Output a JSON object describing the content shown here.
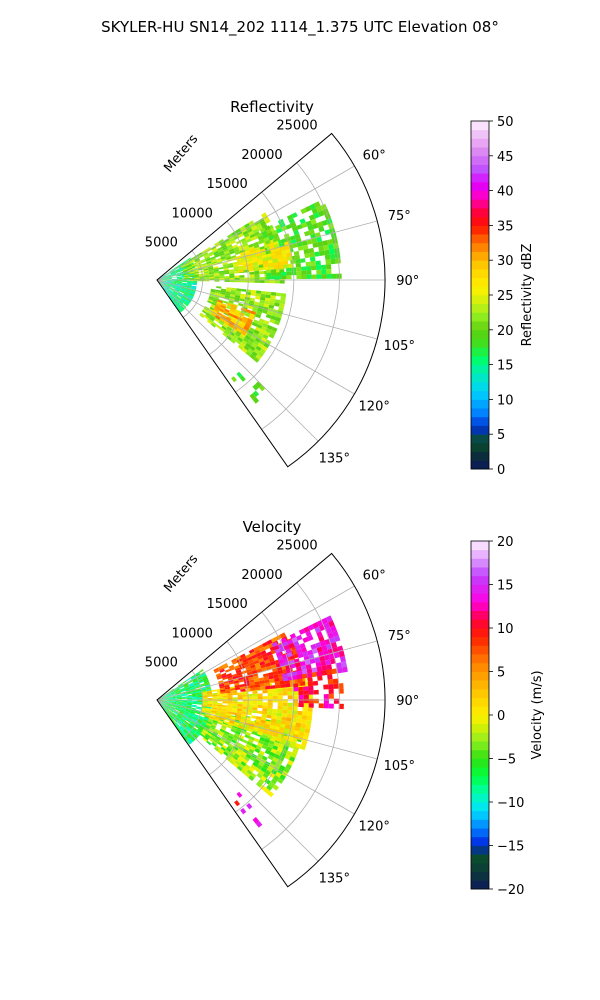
{
  "figure": {
    "title": "SKYLER-HU  SN14_202  1114_1.375 UTC Elevation 08°"
  },
  "chart_data": [
    {
      "type": "heatmap",
      "projection": "polar-sector",
      "title": "Reflectivity",
      "radial_label": "Meters",
      "radial_ticks": [
        "5000",
        "10000",
        "15000",
        "20000",
        "25000"
      ],
      "radial_tick_values": [
        5000,
        10000,
        15000,
        20000,
        25000
      ],
      "rlim": [
        0,
        25000
      ],
      "azimuth_range_deg": [
        50,
        145
      ],
      "angle_ticks": [
        "60°",
        "75°",
        "90°",
        "105°",
        "120°",
        "135°"
      ],
      "angle_tick_values": [
        60,
        75,
        90,
        105,
        120,
        135
      ],
      "grid": true,
      "colorbar": {
        "label": "Reflectivity dBZ",
        "range": [
          0,
          50
        ],
        "ticks": [
          "0",
          "5",
          "10",
          "15",
          "20",
          "25",
          "30",
          "35",
          "40",
          "45",
          "50"
        ],
        "tick_values": [
          0,
          5,
          10,
          15,
          20,
          25,
          30,
          35,
          40,
          45,
          50
        ],
        "stops": [
          {
            "v": 0,
            "c": "#0a1a5a"
          },
          {
            "v": 2,
            "c": "#0c2e3a"
          },
          {
            "v": 4,
            "c": "#0a5028"
          },
          {
            "v": 6,
            "c": "#0030d0"
          },
          {
            "v": 8,
            "c": "#0080ff"
          },
          {
            "v": 11,
            "c": "#00d0ff"
          },
          {
            "v": 14,
            "c": "#00f0b0"
          },
          {
            "v": 16,
            "c": "#00ff60"
          },
          {
            "v": 18,
            "c": "#40e020"
          },
          {
            "v": 20,
            "c": "#60d010"
          },
          {
            "v": 22,
            "c": "#90ee20"
          },
          {
            "v": 24,
            "c": "#d0f010"
          },
          {
            "v": 26,
            "c": "#fff000"
          },
          {
            "v": 29,
            "c": "#ffd000"
          },
          {
            "v": 31,
            "c": "#ffa000"
          },
          {
            "v": 33,
            "c": "#ff6000"
          },
          {
            "v": 35,
            "c": "#ff1000"
          },
          {
            "v": 37,
            "c": "#ff0040"
          },
          {
            "v": 39,
            "c": "#ff00c0"
          },
          {
            "v": 41,
            "c": "#e000ff"
          },
          {
            "v": 43,
            "c": "#c050ff"
          },
          {
            "v": 46,
            "c": "#e090f0"
          },
          {
            "v": 50,
            "c": "#fff0ff"
          }
        ]
      },
      "regions": [
        {
          "az": [
            56,
            144
          ],
          "r": [
            0,
            4000
          ],
          "value": 15,
          "density": 0.9
        },
        {
          "az": [
            58,
            90
          ],
          "r": [
            3000,
            14000
          ],
          "value": 22,
          "density": 0.85
        },
        {
          "az": [
            64,
            88
          ],
          "r": [
            12000,
            20000
          ],
          "value": 19,
          "density": 0.75
        },
        {
          "az": [
            96,
            128
          ],
          "r": [
            6000,
            14000
          ],
          "value": 22,
          "density": 0.85
        },
        {
          "az": [
            108,
            122
          ],
          "r": [
            7000,
            11000
          ],
          "value": 30,
          "density": 0.85
        },
        {
          "az": [
            72,
            84
          ],
          "r": [
            9000,
            15000
          ],
          "value": 26,
          "density": 0.8
        },
        {
          "az": [
            135,
            142
          ],
          "r": [
            13500,
            17500
          ],
          "value": 19,
          "density": 0.15
        }
      ]
    },
    {
      "type": "heatmap",
      "projection": "polar-sector",
      "title": "Velocity",
      "radial_label": "Meters",
      "radial_ticks": [
        "5000",
        "10000",
        "15000",
        "20000",
        "25000"
      ],
      "radial_tick_values": [
        5000,
        10000,
        15000,
        20000,
        25000
      ],
      "rlim": [
        0,
        25000
      ],
      "azimuth_range_deg": [
        50,
        145
      ],
      "angle_ticks": [
        "60°",
        "75°",
        "90°",
        "105°",
        "120°",
        "135°"
      ],
      "angle_tick_values": [
        60,
        75,
        90,
        105,
        120,
        135
      ],
      "grid": true,
      "colorbar": {
        "label": "Velocity (m/s)",
        "range": [
          -20,
          20
        ],
        "ticks": [
          "−20",
          "−15",
          "−10",
          "−5",
          "0",
          "5",
          "10",
          "15",
          "20"
        ],
        "tick_values": [
          -20,
          -15,
          -10,
          -5,
          0,
          5,
          10,
          15,
          20
        ],
        "stops": [
          {
            "v": -20,
            "c": "#0a1a5a"
          },
          {
            "v": -18,
            "c": "#0c3a3a"
          },
          {
            "v": -16,
            "c": "#0a5028"
          },
          {
            "v": -15,
            "c": "#0020e0"
          },
          {
            "v": -13,
            "c": "#0080ff"
          },
          {
            "v": -11,
            "c": "#00e0ff"
          },
          {
            "v": -9,
            "c": "#00ffb0"
          },
          {
            "v": -7,
            "c": "#00ff40"
          },
          {
            "v": -5,
            "c": "#30e010"
          },
          {
            "v": -3,
            "c": "#90ee20"
          },
          {
            "v": -1,
            "c": "#e0f000"
          },
          {
            "v": 0,
            "c": "#fff000"
          },
          {
            "v": 3,
            "c": "#ffc000"
          },
          {
            "v": 6,
            "c": "#ff8000"
          },
          {
            "v": 9,
            "c": "#ff2000"
          },
          {
            "v": 11,
            "c": "#ff0040"
          },
          {
            "v": 13,
            "c": "#ff00e0"
          },
          {
            "v": 16,
            "c": "#c040ff"
          },
          {
            "v": 18,
            "c": "#e0a0ff"
          },
          {
            "v": 20,
            "c": "#fff0ff"
          }
        ]
      },
      "regions": [
        {
          "az": [
            56,
            144
          ],
          "r": [
            0,
            6000
          ],
          "value": -7,
          "density": 0.9
        },
        {
          "az": [
            100,
            130
          ],
          "r": [
            6000,
            16000
          ],
          "value": -3,
          "density": 0.85
        },
        {
          "az": [
            80,
            108
          ],
          "r": [
            5000,
            17000
          ],
          "value": 1,
          "density": 0.9
        },
        {
          "az": [
            62,
            84
          ],
          "r": [
            7000,
            16000
          ],
          "value": 8,
          "density": 0.85
        },
        {
          "az": [
            64,
            80
          ],
          "r": [
            14000,
            21000
          ],
          "value": 14,
          "density": 0.75
        },
        {
          "az": [
            80,
            92
          ],
          "r": [
            15000,
            20000
          ],
          "value": 10,
          "density": 0.6
        },
        {
          "az": [
            135,
            142
          ],
          "r": [
            13500,
            17500
          ],
          "value": 12,
          "density": 0.15
        }
      ]
    }
  ]
}
